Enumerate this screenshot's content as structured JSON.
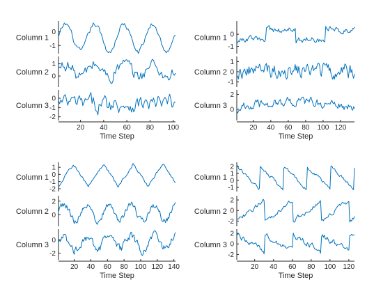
{
  "colors": {
    "series": "#0072BD",
    "axis": "#262626",
    "background": "#ffffff"
  },
  "chart_data": [
    {
      "type": "line",
      "xlabel": "Time Step",
      "x_ticks": [
        20,
        40,
        60,
        80,
        100
      ],
      "xlim": [
        1,
        102
      ],
      "rows": [
        {
          "label": "Column 1",
          "yticks": [
            0,
            -1
          ],
          "ylim": [
            -1.6,
            0.8
          ],
          "pattern": "sine",
          "period": 25,
          "amplitude": 1.0,
          "noise": 0.18,
          "mean": -0.45
        },
        {
          "label": "Column 2",
          "yticks": [
            1,
            0
          ],
          "ylim": [
            -0.9,
            1.6
          ],
          "pattern": "sine",
          "period": 25,
          "amplitude": 0.5,
          "noise": 0.45,
          "mean": 0.45
        },
        {
          "label": "Column 3",
          "yticks": [
            0,
            -1,
            -2
          ],
          "ylim": [
            -2.4,
            0.9
          ],
          "pattern": "noise",
          "period": 25,
          "amplitude": 0.3,
          "noise": 0.75,
          "mean": -0.6
        }
      ]
    },
    {
      "type": "line",
      "xlabel": "Time Step",
      "x_ticks": [
        20,
        40,
        60,
        80,
        100,
        120
      ],
      "xlim": [
        1,
        136
      ],
      "rows": [
        {
          "label": "Column 1",
          "yticks": [
            0,
            -1
          ],
          "ylim": [
            -1.6,
            1.1
          ],
          "pattern": "square",
          "period": 68,
          "amplitude": 0.75,
          "noise": 0.2,
          "mean": -0.15
        },
        {
          "label": "Column 2",
          "yticks": [
            1,
            0,
            -1
          ],
          "ylim": [
            -1.5,
            1.5
          ],
          "pattern": "noise",
          "period": 30,
          "amplitude": 0.3,
          "noise": 0.6,
          "mean": 0.1
        },
        {
          "label": "Column 3",
          "yticks": [
            2,
            0
          ],
          "ylim": [
            -1.5,
            2.6
          ],
          "pattern": "bump",
          "period": 136,
          "amplitude": 0.9,
          "noise": 0.5,
          "mean": 0.1
        }
      ]
    },
    {
      "type": "line",
      "xlabel": "Time Step",
      "x_ticks": [
        20,
        40,
        60,
        80,
        100,
        120,
        140
      ],
      "xlim": [
        1,
        142
      ],
      "rows": [
        {
          "label": "Column 1",
          "yticks": [
            1,
            0,
            -1,
            -2
          ],
          "ylim": [
            -2.4,
            1.7
          ],
          "pattern": "triangle",
          "period": 36,
          "amplitude": 1.6,
          "noise": 0.15,
          "mean": -0.1
        },
        {
          "label": "Column 2",
          "yticks": [
            2,
            0
          ],
          "ylim": [
            -1.7,
            2.8
          ],
          "pattern": "sine",
          "period": 27,
          "amplitude": 1.2,
          "noise": 0.4,
          "mean": 0.3
        },
        {
          "label": "Column 3",
          "yticks": [
            0,
            -2
          ],
          "ylim": [
            -3.0,
            1.6
          ],
          "pattern": "sine",
          "period": 27,
          "amplitude": 0.9,
          "noise": 0.55,
          "mean": -0.5
        }
      ]
    },
    {
      "type": "line",
      "xlabel": "Time Step",
      "x_ticks": [
        20,
        40,
        60,
        80,
        100,
        120
      ],
      "xlim": [
        1,
        126
      ],
      "rows": [
        {
          "label": "Column 1",
          "yticks": [
            2,
            1,
            0,
            -1
          ],
          "ylim": [
            -1.6,
            2.6
          ],
          "pattern": "sawdown",
          "period": 25,
          "amplitude": 1.7,
          "noise": 0.2,
          "mean": 0.3
        },
        {
          "label": "Column 2",
          "yticks": [
            2,
            0,
            -2
          ],
          "ylim": [
            -3.0,
            2.8
          ],
          "pattern": "sawup",
          "period": 30,
          "amplitude": 2.0,
          "noise": 0.35,
          "mean": 0.0
        },
        {
          "label": "Column 3",
          "yticks": [
            2,
            0,
            -2
          ],
          "ylim": [
            -3.0,
            2.8
          ],
          "pattern": "sawdown",
          "period": 30,
          "amplitude": 1.6,
          "noise": 0.45,
          "mean": 0.1
        }
      ]
    }
  ]
}
